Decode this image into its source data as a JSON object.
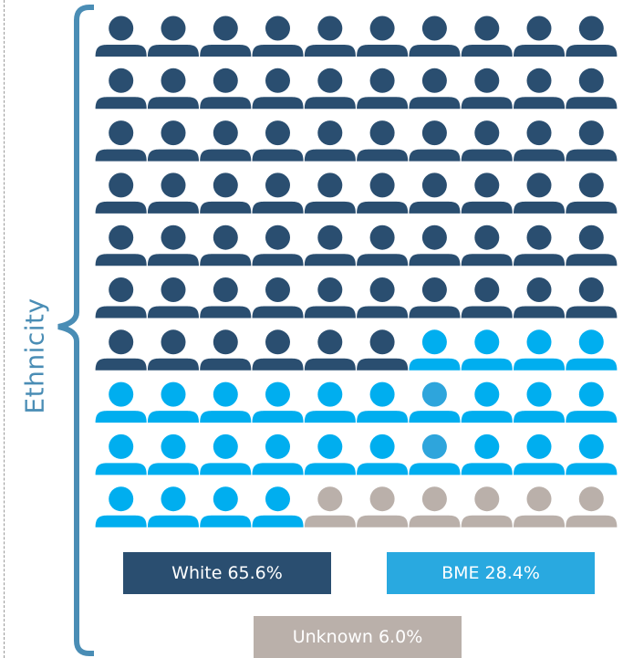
{
  "chart_data": {
    "type": "waffle",
    "axis_label": "Ethnicity",
    "rows": 10,
    "cols": 10,
    "total_icons": 100,
    "fill_order": "row-major, top-left first",
    "categories": [
      {
        "key": "white",
        "label": "White 65.6%",
        "percent": 65.6,
        "icon_count": 66,
        "color": "#2a4e70"
      },
      {
        "key": "bme",
        "label": "BME 28.4%",
        "percent": 28.4,
        "icon_count": 28,
        "color": "#00aeef"
      },
      {
        "key": "unknown",
        "label": "Unknown 6.0%",
        "percent": 6.0,
        "icon_count": 6,
        "color": "#bab0aa"
      }
    ],
    "highlight_icons": [
      {
        "row": 7,
        "col": 6,
        "color": "#2ea5dc"
      },
      {
        "row": 8,
        "col": 6,
        "color": "#2ea5dc"
      }
    ],
    "legend_colors": {
      "white": "#2a4e70",
      "bme": "#29a9e0",
      "unknown": "#bab0aa"
    },
    "bracket_color": "#4a8db5",
    "icon": "person-icon"
  }
}
